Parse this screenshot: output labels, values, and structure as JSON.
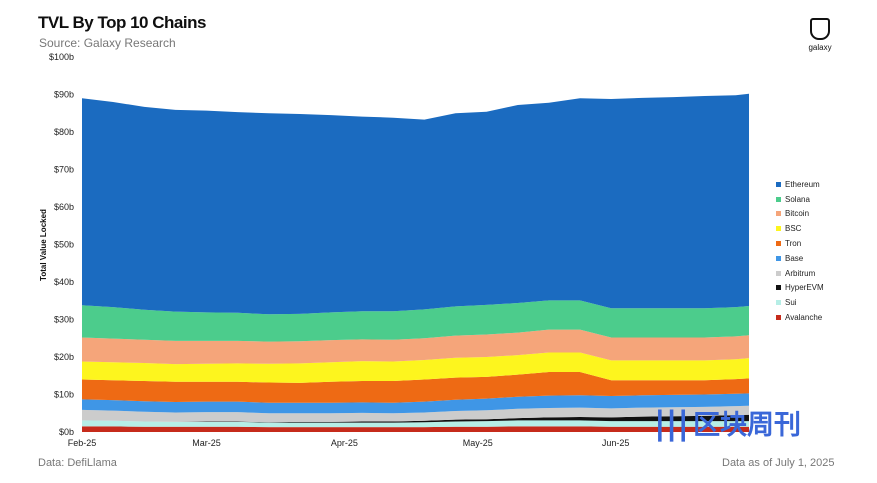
{
  "header": {
    "title": "TVL By Top 10 Chains",
    "subtitle": "Source: Galaxy Research"
  },
  "logo": {
    "text": "galaxy",
    "icon": "galaxy-logo-icon"
  },
  "footer": {
    "source": "Data: DefiLlama",
    "date": "Data as of July 1, 2025"
  },
  "watermark": {
    "mark": "|||",
    "text": "区块周刊"
  },
  "chart_data": {
    "type": "area",
    "stacked": true,
    "ylabel": "Total Value Locked",
    "xlabel": "",
    "ylim": [
      0,
      100
    ],
    "y_ticks": [
      "$0b",
      "$10b",
      "$20b",
      "$30b",
      "$40b",
      "$50b",
      "$60b",
      "$70b",
      "$80b",
      "$90b",
      "$100b"
    ],
    "x_ticks": [
      {
        "date": "2025-02-01",
        "label": "Feb-25"
      },
      {
        "date": "2025-03-01",
        "label": "Mar-25"
      },
      {
        "date": "2025-04-01",
        "label": "Apr-25"
      },
      {
        "date": "2025-05-01",
        "label": "May-25"
      },
      {
        "date": "2025-06-01",
        "label": "Jun-25"
      }
    ],
    "legend_position": "right",
    "x": [
      "2025-02-01",
      "2025-02-08",
      "2025-02-15",
      "2025-02-22",
      "2025-03-01",
      "2025-03-08",
      "2025-03-15",
      "2025-03-22",
      "2025-03-29",
      "2025-04-05",
      "2025-04-12",
      "2025-04-19",
      "2025-04-26",
      "2025-05-03",
      "2025-05-10",
      "2025-05-17",
      "2025-05-24",
      "2025-05-31",
      "2025-06-07",
      "2025-06-14",
      "2025-06-21",
      "2025-06-28",
      "2025-07-01"
    ],
    "series": [
      {
        "name": "Avalanche",
        "color": "#c62b1b",
        "values": [
          1.5,
          1.5,
          1.4,
          1.4,
          1.4,
          1.4,
          1.3,
          1.3,
          1.3,
          1.3,
          1.3,
          1.3,
          1.4,
          1.4,
          1.5,
          1.5,
          1.5,
          1.4,
          1.4,
          1.4,
          1.4,
          1.4,
          1.4
        ]
      },
      {
        "name": "Sui",
        "color": "#b6eee6",
        "values": [
          1.6,
          1.5,
          1.4,
          1.3,
          1.3,
          1.3,
          1.2,
          1.2,
          1.2,
          1.2,
          1.2,
          1.3,
          1.4,
          1.5,
          1.6,
          1.6,
          1.6,
          1.5,
          1.5,
          1.5,
          1.5,
          1.5,
          1.5
        ]
      },
      {
        "name": "HyperEVM",
        "color": "#111111",
        "values": [
          0.0,
          0.0,
          0.0,
          0.0,
          0.1,
          0.1,
          0.1,
          0.2,
          0.2,
          0.3,
          0.3,
          0.4,
          0.5,
          0.5,
          0.6,
          0.8,
          0.9,
          1.0,
          1.2,
          1.3,
          1.4,
          1.6,
          1.7
        ]
      },
      {
        "name": "Arbitrum",
        "color": "#cccccc",
        "values": [
          2.8,
          2.7,
          2.6,
          2.5,
          2.5,
          2.5,
          2.4,
          2.3,
          2.3,
          2.3,
          2.2,
          2.2,
          2.3,
          2.4,
          2.5,
          2.5,
          2.5,
          2.4,
          2.4,
          2.4,
          2.4,
          2.4,
          2.4
        ]
      },
      {
        "name": "Base",
        "color": "#3f96e6",
        "values": [
          2.8,
          2.8,
          2.8,
          2.8,
          2.8,
          2.8,
          2.8,
          2.8,
          2.8,
          2.8,
          2.8,
          2.9,
          3.0,
          3.1,
          3.2,
          3.3,
          3.3,
          3.3,
          3.3,
          3.3,
          3.3,
          3.3,
          3.3
        ]
      },
      {
        "name": "Tron",
        "color": "#ee6a14",
        "values": [
          5.3,
          5.3,
          5.4,
          5.4,
          5.3,
          5.3,
          5.4,
          5.3,
          5.6,
          5.7,
          5.8,
          5.9,
          5.9,
          5.8,
          5.9,
          6.3,
          6.2,
          4.2,
          4.0,
          3.9,
          3.8,
          3.9,
          4.0
        ]
      },
      {
        "name": "BSC",
        "color": "#fdf51e",
        "values": [
          4.8,
          4.8,
          4.8,
          4.7,
          4.8,
          4.9,
          5.0,
          5.2,
          5.2,
          5.3,
          5.2,
          5.2,
          5.3,
          5.3,
          5.2,
          5.2,
          5.2,
          5.3,
          5.3,
          5.3,
          5.3,
          5.3,
          5.4
        ]
      },
      {
        "name": "Bitcoin",
        "color": "#f5a57a",
        "values": [
          6.4,
          6.3,
          6.2,
          6.2,
          6.1,
          6.0,
          5.9,
          5.9,
          5.9,
          5.8,
          5.8,
          5.8,
          5.9,
          6.0,
          6.0,
          6.1,
          6.1,
          6.1,
          6.1,
          6.1,
          6.1,
          6.1,
          6.1
        ]
      },
      {
        "name": "Solana",
        "color": "#4ccc8c",
        "values": [
          8.6,
          8.4,
          8.0,
          7.8,
          7.6,
          7.5,
          7.3,
          7.3,
          7.4,
          7.5,
          7.6,
          7.7,
          7.8,
          7.9,
          7.9,
          7.8,
          7.8,
          7.8,
          7.8,
          7.8,
          7.8,
          7.8,
          7.8
        ]
      },
      {
        "name": "Ethereum",
        "color": "#1b6bc0",
        "values": [
          55.2,
          54.7,
          54.1,
          53.8,
          53.8,
          53.5,
          53.6,
          53.3,
          52.6,
          51.9,
          51.6,
          50.6,
          51.5,
          51.5,
          52.8,
          52.7,
          53.9,
          55.8,
          56.1,
          56.3,
          56.6,
          56.5,
          56.6
        ]
      }
    ]
  }
}
